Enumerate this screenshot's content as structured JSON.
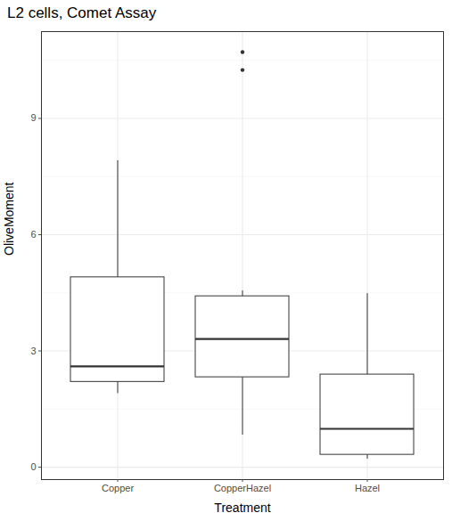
{
  "chart_data": {
    "type": "box",
    "title": "L2 cells, Comet Assay",
    "x_label": "Treatment",
    "y_label": "OliveMoment",
    "categories": [
      "Copper",
      "CopperHazel",
      "Hazel"
    ],
    "boxes": [
      {
        "min": 1.9,
        "q1": 2.2,
        "median": 2.6,
        "q3": 4.9,
        "max": 7.91,
        "outliers": []
      },
      {
        "min": 0.83,
        "q1": 2.32,
        "median": 3.31,
        "q3": 4.41,
        "max": 4.55,
        "outliers": [
          10.71,
          10.25
        ]
      },
      {
        "min": 0.21,
        "q1": 0.32,
        "median": 0.99,
        "q3": 2.39,
        "max": 4.48,
        "outliers": []
      }
    ],
    "ylim": [
      -0.32,
      11.24
    ],
    "yticks": [
      0,
      3,
      6,
      9
    ],
    "grid": true
  }
}
